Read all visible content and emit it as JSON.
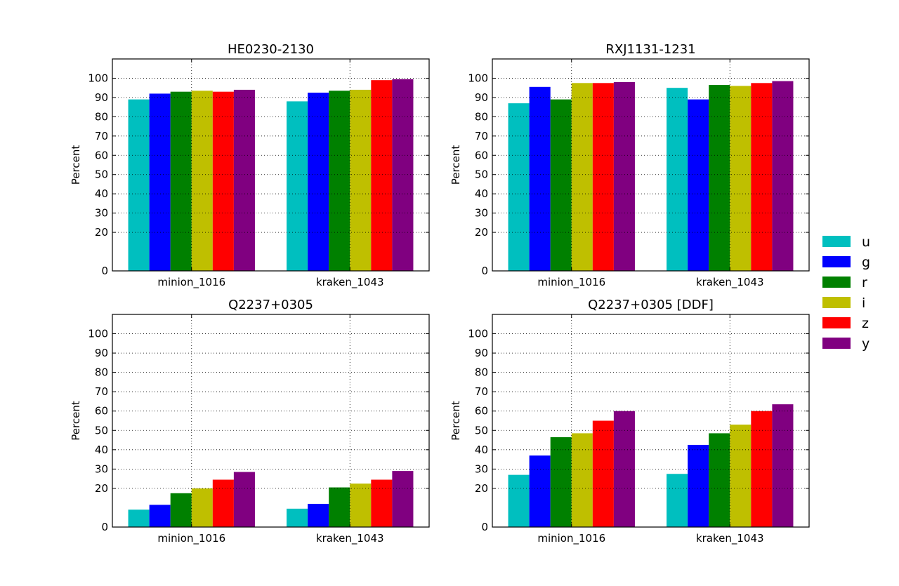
{
  "figure": {
    "legend": {
      "placement": "right",
      "entries": [
        {
          "label": "u",
          "color": "#00bfbf"
        },
        {
          "label": "g",
          "color": "#0000ff"
        },
        {
          "label": "r",
          "color": "#008000"
        },
        {
          "label": "i",
          "color": "#bfbf00"
        },
        {
          "label": "z",
          "color": "#ff0000"
        },
        {
          "label": "y",
          "color": "#800080"
        }
      ]
    }
  },
  "chart_data": [
    {
      "type": "bar",
      "title": "HE0230-2130",
      "ylabel": "Percent",
      "xlabel": "",
      "ylim": [
        0,
        110
      ],
      "yticks": [
        0,
        20,
        30,
        40,
        50,
        60,
        70,
        80,
        90,
        100
      ],
      "grid": true,
      "categories": [
        "minion_1016",
        "kraken_1043"
      ],
      "series": [
        {
          "name": "u",
          "values": [
            89,
            88
          ]
        },
        {
          "name": "g",
          "values": [
            92,
            92.5
          ]
        },
        {
          "name": "r",
          "values": [
            93,
            93.5
          ]
        },
        {
          "name": "i",
          "values": [
            93.5,
            94
          ]
        },
        {
          "name": "z",
          "values": [
            93,
            99
          ]
        },
        {
          "name": "y",
          "values": [
            94,
            99.5
          ]
        }
      ]
    },
    {
      "type": "bar",
      "title": "RXJ1131-1231",
      "ylabel": "Percent",
      "xlabel": "",
      "ylim": [
        0,
        110
      ],
      "yticks": [
        0,
        20,
        30,
        40,
        50,
        60,
        70,
        80,
        90,
        100
      ],
      "grid": true,
      "categories": [
        "minion_1016",
        "kraken_1043"
      ],
      "series": [
        {
          "name": "u",
          "values": [
            87,
            95
          ]
        },
        {
          "name": "g",
          "values": [
            95.5,
            89
          ]
        },
        {
          "name": "r",
          "values": [
            89,
            96.5
          ]
        },
        {
          "name": "i",
          "values": [
            97.5,
            96
          ]
        },
        {
          "name": "z",
          "values": [
            97.5,
            97.5
          ]
        },
        {
          "name": "y",
          "values": [
            98,
            98.5
          ]
        }
      ]
    },
    {
      "type": "bar",
      "title": "Q2237+0305",
      "ylabel": "Percent",
      "xlabel": "",
      "ylim": [
        0,
        110
      ],
      "yticks": [
        0,
        20,
        30,
        40,
        50,
        60,
        70,
        80,
        90,
        100
      ],
      "grid": true,
      "categories": [
        "minion_1016",
        "kraken_1043"
      ],
      "series": [
        {
          "name": "u",
          "values": [
            9,
            9.5
          ]
        },
        {
          "name": "g",
          "values": [
            11.5,
            12
          ]
        },
        {
          "name": "r",
          "values": [
            17.5,
            20.5
          ]
        },
        {
          "name": "i",
          "values": [
            20,
            22.5
          ]
        },
        {
          "name": "z",
          "values": [
            24.5,
            24.5
          ]
        },
        {
          "name": "y",
          "values": [
            28.5,
            29
          ]
        }
      ]
    },
    {
      "type": "bar",
      "title": "Q2237+0305 [DDF]",
      "ylabel": "Percent",
      "xlabel": "",
      "ylim": [
        0,
        110
      ],
      "yticks": [
        0,
        20,
        30,
        40,
        50,
        60,
        70,
        80,
        90,
        100
      ],
      "grid": true,
      "categories": [
        "minion_1016",
        "kraken_1043"
      ],
      "series": [
        {
          "name": "u",
          "values": [
            27,
            27.5
          ]
        },
        {
          "name": "g",
          "values": [
            37,
            42.5
          ]
        },
        {
          "name": "r",
          "values": [
            46.5,
            48.5
          ]
        },
        {
          "name": "i",
          "values": [
            48.5,
            53
          ]
        },
        {
          "name": "z",
          "values": [
            55,
            60
          ]
        },
        {
          "name": "y",
          "values": [
            60,
            63.5
          ]
        }
      ]
    }
  ]
}
